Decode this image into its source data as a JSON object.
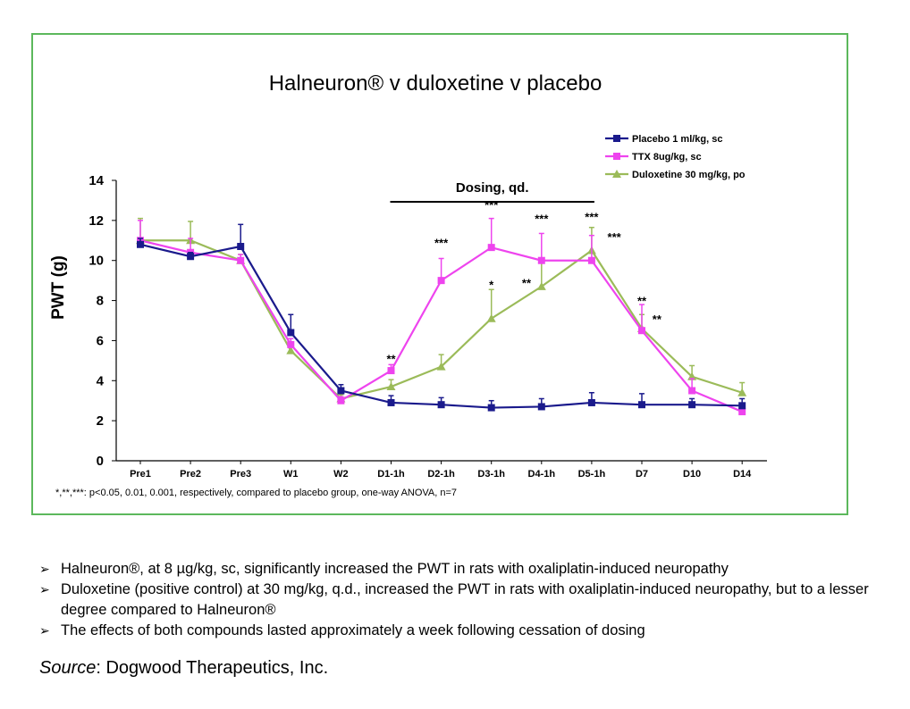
{
  "colors": {
    "frame": "#5cb85c",
    "placebo": "#1a1a8c",
    "ttx": "#ee44ee",
    "duloxetine": "#9bbb59",
    "axis": "#000000"
  },
  "chart_data": {
    "type": "line",
    "title": "Halneuron® v duloxetine v placebo",
    "ylabel": "PWT (g)",
    "xlabel": "",
    "ylim": [
      0,
      14
    ],
    "yticks": [
      "0",
      "2",
      "4",
      "6",
      "8",
      "10",
      "12",
      "14"
    ],
    "categories": [
      "Pre1",
      "Pre2",
      "Pre3",
      "W1",
      "W2",
      "D1-1h",
      "D2-1h",
      "D3-1h",
      "D4-1h",
      "D5-1h",
      "D7",
      "D10",
      "D14"
    ],
    "series": [
      {
        "name": "Placebo  1 ml/kg, sc",
        "marker": "square",
        "values": [
          10.8,
          10.2,
          10.7,
          6.4,
          3.5,
          2.9,
          2.8,
          2.65,
          2.7,
          2.9,
          2.8,
          2.8,
          2.75
        ],
        "errors": [
          0.3,
          0.2,
          1.1,
          0.9,
          0.3,
          0.35,
          0.35,
          0.35,
          0.4,
          0.5,
          0.55,
          0.3,
          0.35
        ]
      },
      {
        "name": "TTX 8ug/kg, sc",
        "marker": "square",
        "values": [
          11.0,
          10.4,
          10.0,
          5.8,
          3.0,
          4.5,
          9.0,
          10.65,
          10.0,
          10.0,
          6.5,
          3.5,
          2.45
        ],
        "errors": [
          1.0,
          0.7,
          0.3,
          0.3,
          0.2,
          0.3,
          1.1,
          1.45,
          1.35,
          1.25,
          1.3,
          0.6,
          0.1
        ]
      },
      {
        "name": "Duloxetine 30 mg/kg, po",
        "marker": "triangle",
        "values": [
          11.0,
          11.0,
          10.0,
          5.5,
          3.1,
          3.7,
          4.7,
          7.1,
          8.7,
          10.5,
          6.6,
          4.2,
          3.4
        ],
        "errors": [
          1.1,
          0.95,
          0.3,
          0.3,
          0.2,
          0.35,
          0.6,
          1.45,
          1.2,
          1.15,
          0.7,
          0.55,
          0.5
        ]
      }
    ],
    "dosing": {
      "label": "Dosing, qd.",
      "from_category": "D1-1h",
      "to_category": "D5-1h"
    },
    "annotations": [
      {
        "text": "**",
        "category": "D1-1h",
        "y": 5.1
      },
      {
        "text": "***",
        "category": "D2-1h",
        "y": 10.9
      },
      {
        "text": "***",
        "category": "D3-1h",
        "y": 12.8
      },
      {
        "text": "*",
        "category": "D3-1h",
        "y": 8.8
      },
      {
        "text": "***",
        "category": "D4-1h",
        "y": 12.1
      },
      {
        "text": "**",
        "category": "D4-1h",
        "y": 8.9,
        "dx": -0.3
      },
      {
        "text": "***",
        "category": "D5-1h",
        "y": 12.2
      },
      {
        "text": "***",
        "category": "D5-1h",
        "y": 11.2,
        "dx": 0.45
      },
      {
        "text": "**",
        "category": "D7",
        "y": 8.0
      },
      {
        "text": "**",
        "category": "D7",
        "y": 7.1,
        "dx": 0.3
      }
    ],
    "footnote": "*,**,***: p<0.05, 0.01, 0.001,  respectively, compared to placebo group, one-way ANOVA, n=7"
  },
  "bullets": [
    "Halneuron®, at 8 µg/kg, sc, significantly increased the PWT in rats with oxaliplatin-induced neuropathy",
    "Duloxetine (positive control) at 30 mg/kg, q.d., increased the PWT in rats with oxaliplatin-induced neuropathy, but to a lesser degree compared to Halneuron®",
    "The effects of both compounds lasted approximately a week following cessation of dosing"
  ],
  "bullet_marker": "➢",
  "source": {
    "label": "Source",
    "text": ": Dogwood Therapeutics, Inc."
  }
}
